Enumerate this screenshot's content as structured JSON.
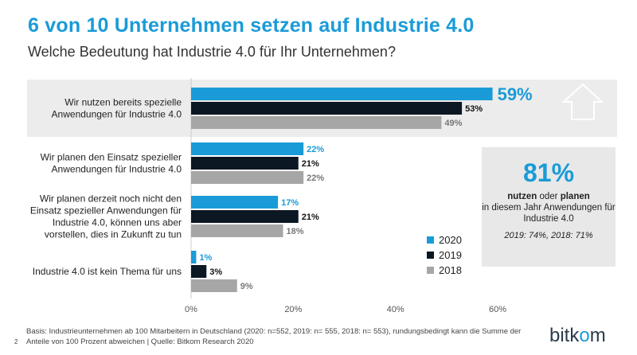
{
  "page": {
    "title": "6 von 10 Unternehmen setzen auf Industrie 4.0",
    "subtitle": "Welche Bedeutung hat Industrie 4.0 für Ihr Unternehmen?",
    "footnote": "Basis: Industrieunternehmen ab 100 Mitarbeitern in Deutschland (2020: n=552, 2019: n= 555, 2018: n= 553), rundungsbedingt kann die Summe der Anteile von 100 Prozent abweichen | Quelle: Bitkom Research 2020",
    "page_number": "2",
    "logo": {
      "left": "bitk",
      "dot": "o",
      "right": "m"
    },
    "callout": {
      "value": "81%",
      "text_1": "nutzen",
      "text_2": " oder ",
      "text_3": "planen",
      "text_4": "in diesem Jahr Anwendungen für Industrie 4.0",
      "previous": "2019: 74%, 2018: 71%"
    },
    "colors": {
      "s2020": "#1a9bd7",
      "s2019": "#0b1722",
      "s2018": "#a6a6a6",
      "band": "#ececec",
      "accent": "#1a9bd7"
    }
  },
  "chart_data": {
    "type": "bar",
    "orientation": "horizontal",
    "title": "6 von 10 Unternehmen setzen auf Industrie 4.0",
    "subtitle": "Welche Bedeutung hat Industrie 4.0 für Ihr Unternehmen?",
    "categories": [
      [
        "Wir nutzen bereits spezielle",
        "Anwendungen für Industrie 4.0"
      ],
      [
        "Wir planen den Einsatz spezieller",
        "Anwendungen für Industrie 4.0"
      ],
      [
        "Wir planen derzeit noch nicht den",
        "Einsatz spezieller Anwendungen für",
        "Industrie 4.0, können uns aber",
        "vorstellen, dies in Zukunft zu tun"
      ],
      [
        "Industrie 4.0 ist kein Thema für uns"
      ]
    ],
    "series": [
      {
        "name": "2020",
        "values": [
          59,
          22,
          17,
          1
        ],
        "labels": [
          "59%",
          "22%",
          "17%",
          "1%"
        ]
      },
      {
        "name": "2019",
        "values": [
          53,
          21,
          21,
          3
        ],
        "labels": [
          "53%",
          "21%",
          "21%",
          "3%"
        ]
      },
      {
        "name": "2018",
        "values": [
          49,
          22,
          18,
          9
        ],
        "labels": [
          "49%",
          "22%",
          "18%",
          "9%"
        ]
      }
    ],
    "xlim": [
      0,
      60
    ],
    "xticks": [
      0,
      20,
      40,
      60
    ],
    "xtick_labels": [
      "0%",
      "20%",
      "40%",
      "60%"
    ],
    "highlight_category": 0,
    "legend": [
      "2020",
      "2019",
      "2018"
    ],
    "legend_position": "bottom-right"
  }
}
